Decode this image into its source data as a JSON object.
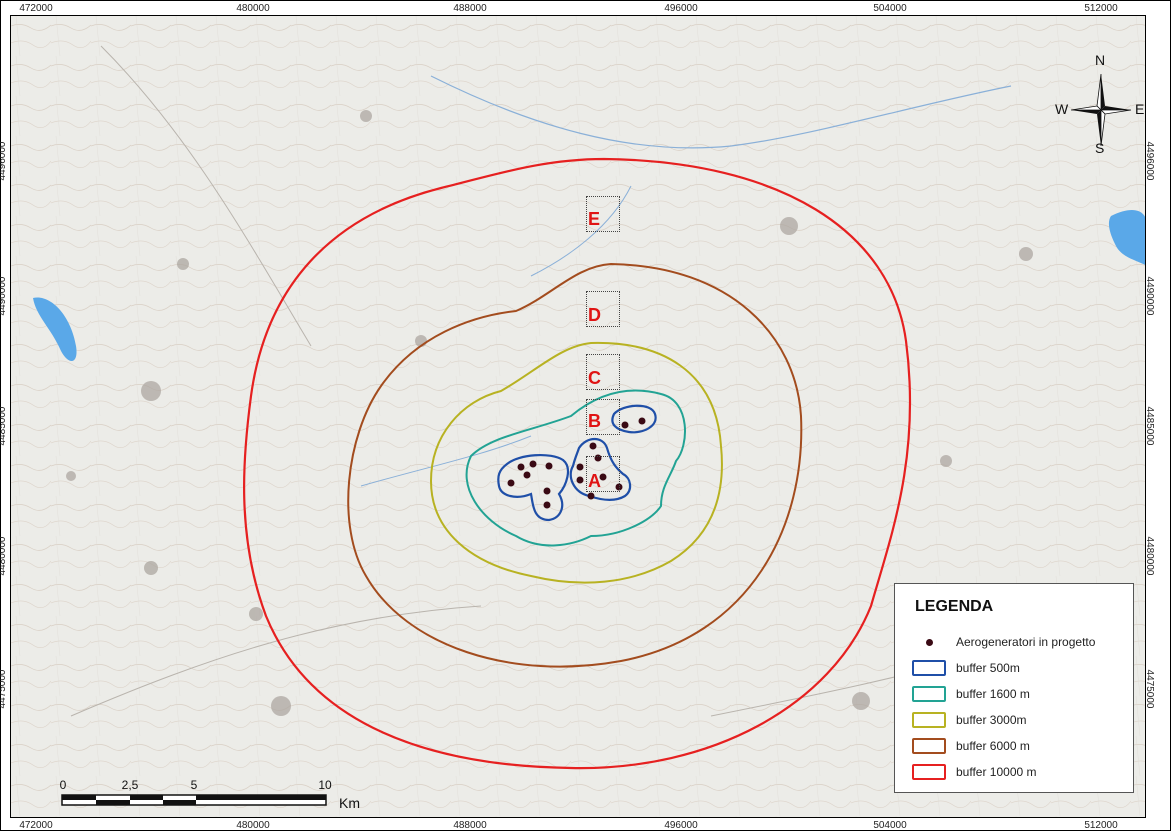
{
  "map": {
    "coords_top": [
      "472000",
      "480000",
      "488000",
      "496000",
      "504000",
      "512000"
    ],
    "coords_bottom": [
      "472000",
      "480000",
      "488000",
      "496000",
      "504000",
      "512000"
    ],
    "coords_left": [
      "4496000",
      "4490000",
      "4485000",
      "4480000",
      "4475000"
    ],
    "coords_right": [
      "4496000",
      "4490000",
      "4485000",
      "4480000",
      "4475000"
    ],
    "zones": [
      "E",
      "D",
      "C",
      "B",
      "A"
    ],
    "colors": {
      "buffer_500": "#1f4fa8",
      "buffer_1600": "#22a394",
      "buffer_3000": "#b8b222",
      "buffer_6000": "#a34c1e",
      "buffer_10000": "#e62020",
      "turbine": "#3a0a14",
      "zone_label": "#e01414",
      "water": "#5aa8e8"
    }
  },
  "compass": {
    "n": "N",
    "s": "S",
    "e": "E",
    "w": "W"
  },
  "legend": {
    "title": "LEGENDA",
    "items": [
      {
        "icon": "turbine-dot-icon",
        "label": "Aerogeneratori in progetto"
      },
      {
        "icon": "buffer-500-swatch",
        "label": "buffer   500m"
      },
      {
        "icon": "buffer-1600-swatch",
        "label": "buffer  1600 m"
      },
      {
        "icon": "buffer-3000-swatch",
        "label": "buffer  3000m"
      },
      {
        "icon": "buffer-6000-swatch",
        "label": "buffer  6000 m"
      },
      {
        "icon": "buffer-10000-swatch",
        "label": "buffer 10000 m"
      }
    ]
  },
  "scalebar": {
    "ticks": [
      "0",
      "2,5",
      "5",
      "10"
    ],
    "unit": "Km"
  }
}
